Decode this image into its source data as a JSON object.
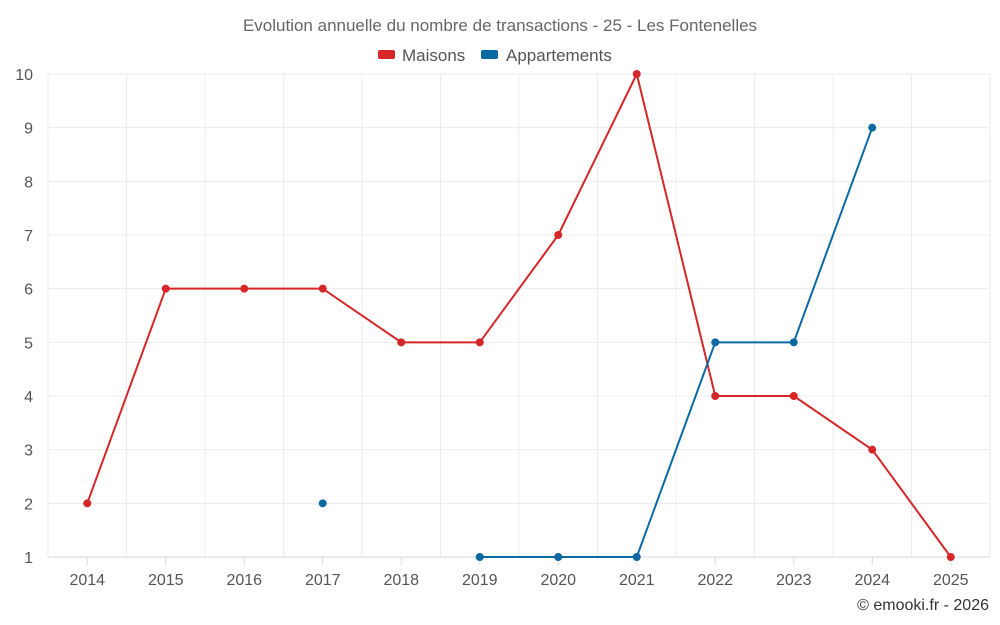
{
  "chart_data": {
    "type": "line",
    "title": "Evolution annuelle du nombre de transactions - 25 - Les Fontenelles",
    "categories": [
      "2014",
      "2015",
      "2016",
      "2017",
      "2018",
      "2019",
      "2020",
      "2021",
      "2022",
      "2023",
      "2024",
      "2025"
    ],
    "ylim": [
      1,
      10
    ],
    "yticks": [
      1,
      2,
      3,
      4,
      5,
      6,
      7,
      8,
      9,
      10
    ],
    "grid": true,
    "legend_position": "top-center",
    "series": [
      {
        "name": "Maisons",
        "color": "#d62728",
        "values": [
          2,
          6,
          6,
          6,
          5,
          5,
          7,
          10,
          4,
          4,
          3,
          1
        ]
      },
      {
        "name": "Appartements",
        "color": "#0b6aa2",
        "values": [
          null,
          null,
          null,
          2,
          null,
          1,
          1,
          1,
          5,
          5,
          9,
          null
        ]
      }
    ]
  },
  "credit": "© emooki.fr - 2026"
}
